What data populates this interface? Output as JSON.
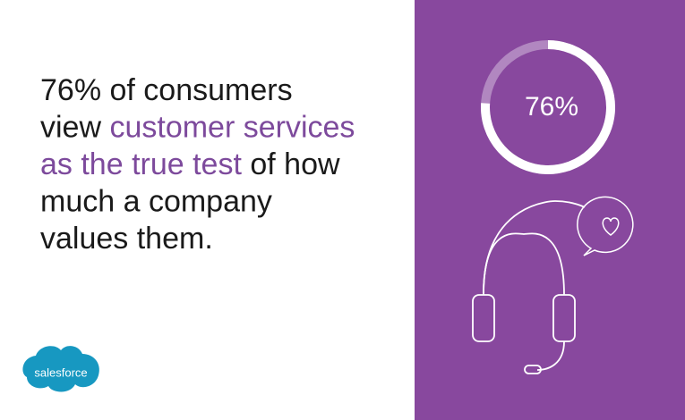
{
  "headline": {
    "lines": [
      [
        {
          "text": "76% of consumers",
          "color": "#1a1a1a"
        }
      ],
      [
        {
          "text": "view ",
          "color": "#1a1a1a"
        },
        {
          "text": "customer services",
          "color": "#7d4a9c"
        }
      ],
      [
        {
          "text": "as the true test",
          "color": "#7d4a9c"
        },
        {
          "text": " of how",
          "color": "#1a1a1a"
        }
      ],
      [
        {
          "text": "much a company",
          "color": "#1a1a1a"
        }
      ],
      [
        {
          "text": "values them.",
          "color": "#1a1a1a"
        }
      ]
    ]
  },
  "donut": {
    "value": 76,
    "label": "76%",
    "max": 100
  },
  "logo": {
    "text": "salesforce"
  }
}
